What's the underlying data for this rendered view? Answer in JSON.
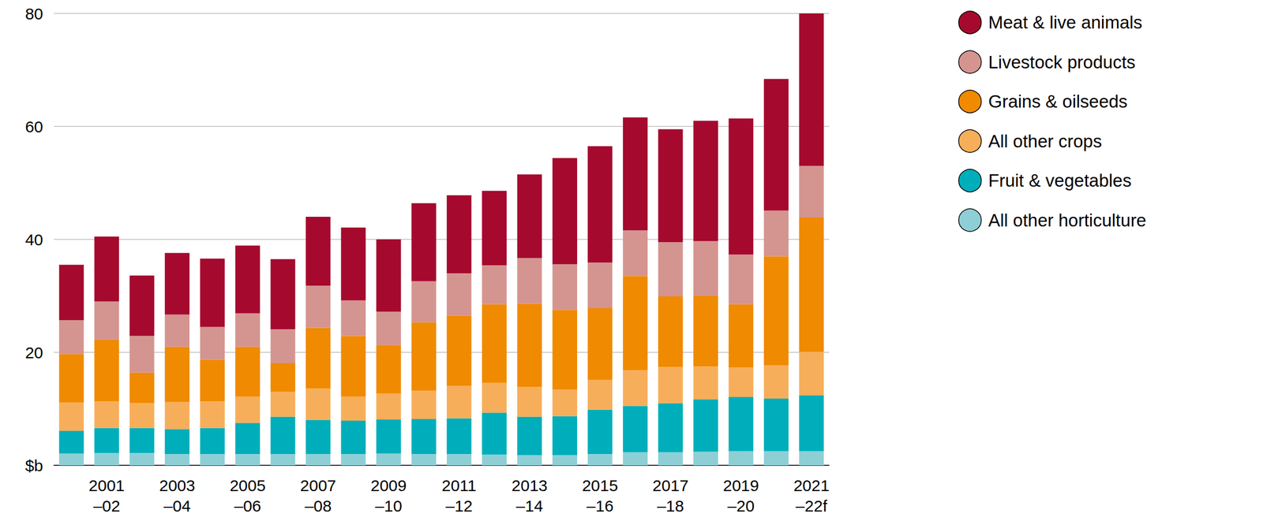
{
  "chart_data": {
    "type": "bar",
    "stacked": true,
    "grid": true,
    "legend": "right",
    "categories": [
      null,
      "2001–02",
      null,
      "2003–04",
      null,
      "2005–06",
      null,
      "2007–08",
      null,
      "2009–10",
      null,
      "2011–12",
      null,
      "2013–14",
      null,
      "2015–16",
      null,
      "2017–18",
      null,
      "2019–20",
      null,
      "2021–22f"
    ],
    "ylim": [
      0,
      80
    ],
    "yticks": [
      {
        "value": 0,
        "label": "$b"
      },
      20,
      40,
      60,
      80
    ],
    "series": [
      {
        "name": "Meat & live animals",
        "color": "#a50a2e",
        "values": [
          9.8,
          11.5,
          10.7,
          10.9,
          12.1,
          12.0,
          12.4,
          12.2,
          12.9,
          12.8,
          13.8,
          13.8,
          13.2,
          14.8,
          18.8,
          20.6,
          20.0,
          20.0,
          21.3,
          24.1,
          23.3,
          27.0
        ]
      },
      {
        "name": "Livestock products",
        "color": "#d49590",
        "values": [
          6.0,
          6.8,
          6.5,
          5.7,
          5.8,
          5.9,
          6.0,
          7.5,
          6.3,
          5.9,
          7.3,
          7.5,
          6.9,
          8.1,
          8.1,
          8.1,
          8.1,
          9.6,
          9.7,
          8.8,
          8.1,
          9.1
        ]
      },
      {
        "name": "Grains & oilseeds",
        "color": "#f08a00",
        "values": [
          8.6,
          10.9,
          5.4,
          9.8,
          7.4,
          8.8,
          5.1,
          10.7,
          10.7,
          8.6,
          12.1,
          12.4,
          13.9,
          14.7,
          14.1,
          12.7,
          16.7,
          12.5,
          12.5,
          11.2,
          19.3,
          23.8
        ]
      },
      {
        "name": "All other crops",
        "color": "#f7ae5a",
        "values": [
          5.0,
          4.7,
          4.4,
          4.8,
          4.7,
          4.7,
          4.4,
          5.6,
          4.3,
          4.6,
          5.0,
          5.8,
          5.3,
          5.3,
          4.7,
          5.3,
          6.3,
          6.4,
          5.8,
          5.2,
          5.9,
          7.7
        ]
      },
      {
        "name": "Fruit & vegetables",
        "color": "#00aebb",
        "values": [
          4.0,
          4.4,
          4.4,
          4.4,
          4.6,
          5.5,
          6.6,
          6.0,
          5.9,
          6.0,
          6.2,
          6.3,
          7.4,
          6.8,
          6.9,
          7.8,
          8.2,
          8.7,
          9.3,
          9.6,
          9.3,
          9.9
        ]
      },
      {
        "name": "All other horticulture",
        "color": "#8ecfd6",
        "values": [
          2.1,
          2.2,
          2.2,
          2.0,
          2.0,
          2.0,
          2.0,
          2.0,
          2.0,
          2.1,
          2.0,
          2.0,
          1.9,
          1.8,
          1.8,
          2.0,
          2.3,
          2.3,
          2.4,
          2.5,
          2.5,
          2.5
        ]
      }
    ]
  }
}
